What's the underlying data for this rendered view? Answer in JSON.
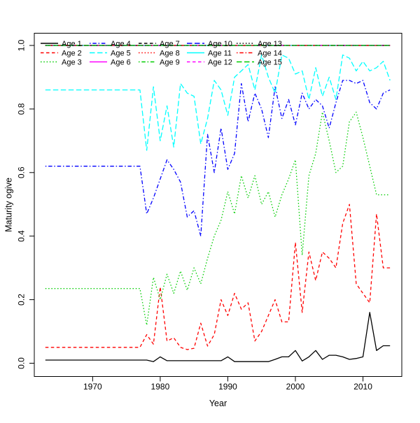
{
  "window": {
    "background": "#FFFFFF",
    "border_color": "#000000"
  },
  "chart_data": {
    "type": "line",
    "title": "",
    "xlabel": "Year",
    "ylabel": "Maturity ogive",
    "grid": false,
    "legend": {
      "position": "top-left",
      "columns": 5,
      "rows": 3,
      "fill_order": "column-major",
      "border": "none"
    },
    "xlim": [
      1961,
      2016
    ],
    "ylim": [
      -0.04,
      1.04
    ],
    "x_ticks": [
      1970,
      1980,
      1990,
      2000,
      2010
    ],
    "y_ticks": [
      {
        "value": 0.0,
        "label": "0.0"
      },
      {
        "value": 0.2,
        "label": "0.2"
      },
      {
        "value": 0.4,
        "label": "0.4"
      },
      {
        "value": 0.6,
        "label": "0.6"
      },
      {
        "value": 0.8,
        "label": "0.8"
      },
      {
        "value": 1.0,
        "label": "1.0"
      }
    ],
    "years": [
      1963,
      1964,
      1965,
      1966,
      1967,
      1968,
      1969,
      1970,
      1971,
      1972,
      1973,
      1974,
      1975,
      1976,
      1977,
      1978,
      1979,
      1980,
      1981,
      1982,
      1983,
      1984,
      1985,
      1986,
      1987,
      1988,
      1989,
      1990,
      1991,
      1992,
      1993,
      1994,
      1995,
      1996,
      1997,
      1998,
      1999,
      2000,
      2001,
      2002,
      2003,
      2004,
      2005,
      2006,
      2007,
      2008,
      2009,
      2010,
      2011,
      2012,
      2013,
      2014
    ],
    "series": [
      {
        "name": "Age 1",
        "color": "#000000",
        "linetype": "solid",
        "values": [
          0.01,
          0.01,
          0.01,
          0.01,
          0.01,
          0.01,
          0.01,
          0.01,
          0.01,
          0.01,
          0.01,
          0.01,
          0.01,
          0.01,
          0.01,
          0.01,
          0.005,
          0.02,
          0.008,
          0.008,
          0.008,
          0.008,
          0.008,
          0.008,
          0.008,
          0.008,
          0.008,
          0.02,
          0.005,
          0.005,
          0.005,
          0.005,
          0.005,
          0.005,
          0.012,
          0.02,
          0.02,
          0.04,
          0.007,
          0.02,
          0.04,
          0.012,
          0.025,
          0.025,
          0.02,
          0.012,
          0.015,
          0.02,
          0.16,
          0.04,
          0.055,
          0.055
        ]
      },
      {
        "name": "Age 2",
        "color": "#FF0000",
        "linetype": "dashed",
        "values": [
          0.05,
          0.05,
          0.05,
          0.05,
          0.05,
          0.05,
          0.05,
          0.05,
          0.05,
          0.05,
          0.05,
          0.05,
          0.05,
          0.05,
          0.05,
          0.09,
          0.06,
          0.24,
          0.07,
          0.08,
          0.05,
          0.043,
          0.047,
          0.126,
          0.054,
          0.09,
          0.2,
          0.15,
          0.22,
          0.17,
          0.19,
          0.07,
          0.1,
          0.15,
          0.2,
          0.13,
          0.13,
          0.38,
          0.16,
          0.35,
          0.26,
          0.35,
          0.33,
          0.3,
          0.44,
          0.5,
          0.25,
          0.22,
          0.19,
          0.47,
          0.3,
          0.3
        ]
      },
      {
        "name": "Age 3",
        "color": "#00CD00",
        "linetype": "dotted",
        "values": [
          0.235,
          0.235,
          0.235,
          0.235,
          0.235,
          0.235,
          0.235,
          0.235,
          0.235,
          0.235,
          0.235,
          0.235,
          0.235,
          0.235,
          0.235,
          0.12,
          0.27,
          0.2,
          0.28,
          0.22,
          0.29,
          0.23,
          0.3,
          0.25,
          0.33,
          0.4,
          0.45,
          0.54,
          0.47,
          0.59,
          0.52,
          0.59,
          0.5,
          0.54,
          0.46,
          0.53,
          0.58,
          0.64,
          0.34,
          0.59,
          0.66,
          0.79,
          0.7,
          0.6,
          0.62,
          0.76,
          0.79,
          0.71,
          0.62,
          0.53,
          0.53,
          0.53
        ]
      },
      {
        "name": "Age 4",
        "color": "#0000FF",
        "linetype": "dotdash",
        "values": [
          0.62,
          0.62,
          0.62,
          0.62,
          0.62,
          0.62,
          0.62,
          0.62,
          0.62,
          0.62,
          0.62,
          0.62,
          0.62,
          0.62,
          0.62,
          0.47,
          0.52,
          0.58,
          0.64,
          0.61,
          0.57,
          0.46,
          0.48,
          0.4,
          0.72,
          0.6,
          0.74,
          0.61,
          0.66,
          0.88,
          0.76,
          0.85,
          0.8,
          0.71,
          0.87,
          0.77,
          0.83,
          0.75,
          0.85,
          0.8,
          0.83,
          0.81,
          0.74,
          0.82,
          0.89,
          0.89,
          0.88,
          0.89,
          0.82,
          0.8,
          0.85,
          0.86
        ]
      },
      {
        "name": "Age 5",
        "color": "#00FFFF",
        "linetype": "longdash",
        "values": [
          0.86,
          0.86,
          0.86,
          0.86,
          0.86,
          0.86,
          0.86,
          0.86,
          0.86,
          0.86,
          0.86,
          0.86,
          0.86,
          0.86,
          0.86,
          0.67,
          0.87,
          0.7,
          0.81,
          0.68,
          0.88,
          0.85,
          0.84,
          0.69,
          0.77,
          0.89,
          0.86,
          0.78,
          0.9,
          0.92,
          0.94,
          0.86,
          0.97,
          0.9,
          0.85,
          0.97,
          0.96,
          0.91,
          0.92,
          0.83,
          0.93,
          0.84,
          0.9,
          0.83,
          0.97,
          0.96,
          0.92,
          0.95,
          0.92,
          0.93,
          0.95,
          0.89
        ]
      },
      {
        "name": "Age 6",
        "color": "#FF00FF",
        "linetype": "solid",
        "values": [
          1,
          1,
          1,
          1,
          1,
          1,
          1,
          1,
          1,
          1,
          1,
          1,
          1,
          1,
          1,
          1,
          1,
          1,
          1,
          1,
          1,
          1,
          1,
          1,
          1,
          1,
          1,
          1,
          1,
          1,
          1,
          1,
          1,
          1,
          1,
          1,
          1,
          1,
          1,
          1,
          1,
          1,
          1,
          1,
          1,
          1,
          1,
          1,
          1,
          1,
          1,
          1
        ]
      },
      {
        "name": "Age 7",
        "color": "#000000",
        "linetype": "dashed",
        "values": [
          1,
          1,
          1,
          1,
          1,
          1,
          1,
          1,
          1,
          1,
          1,
          1,
          1,
          1,
          1,
          1,
          1,
          1,
          1,
          1,
          1,
          1,
          1,
          1,
          1,
          1,
          1,
          1,
          1,
          1,
          1,
          1,
          1,
          1,
          1,
          1,
          1,
          1,
          1,
          1,
          1,
          1,
          1,
          1,
          1,
          1,
          1,
          1,
          1,
          1,
          1,
          1
        ]
      },
      {
        "name": "Age 8",
        "color": "#FF0000",
        "linetype": "dotted",
        "values": [
          1,
          1,
          1,
          1,
          1,
          1,
          1,
          1,
          1,
          1,
          1,
          1,
          1,
          1,
          1,
          1,
          1,
          1,
          1,
          1,
          1,
          1,
          1,
          1,
          1,
          1,
          1,
          1,
          1,
          1,
          1,
          1,
          1,
          1,
          1,
          1,
          1,
          1,
          1,
          1,
          1,
          1,
          1,
          1,
          1,
          1,
          1,
          1,
          1,
          1,
          1,
          1
        ]
      },
      {
        "name": "Age 9",
        "color": "#00CD00",
        "linetype": "dotdash",
        "values": [
          1,
          1,
          1,
          1,
          1,
          1,
          1,
          1,
          1,
          1,
          1,
          1,
          1,
          1,
          1,
          1,
          1,
          1,
          1,
          1,
          1,
          1,
          1,
          1,
          1,
          1,
          1,
          1,
          1,
          1,
          1,
          1,
          1,
          1,
          1,
          1,
          1,
          1,
          1,
          1,
          1,
          1,
          1,
          1,
          1,
          1,
          1,
          1,
          1,
          1,
          1,
          1
        ]
      },
      {
        "name": "Age 10",
        "color": "#0000FF",
        "linetype": "longdash",
        "values": [
          1,
          1,
          1,
          1,
          1,
          1,
          1,
          1,
          1,
          1,
          1,
          1,
          1,
          1,
          1,
          1,
          1,
          1,
          1,
          1,
          1,
          1,
          1,
          1,
          1,
          1,
          1,
          1,
          1,
          1,
          1,
          1,
          1,
          1,
          1,
          1,
          1,
          1,
          1,
          1,
          1,
          1,
          1,
          1,
          1,
          1,
          1,
          1,
          1,
          1,
          1,
          1
        ]
      },
      {
        "name": "Age 11",
        "color": "#00FFFF",
        "linetype": "solid",
        "values": [
          1,
          1,
          1,
          1,
          1,
          1,
          1,
          1,
          1,
          1,
          1,
          1,
          1,
          1,
          1,
          1,
          1,
          1,
          1,
          1,
          1,
          1,
          1,
          1,
          1,
          1,
          1,
          1,
          1,
          1,
          1,
          1,
          1,
          1,
          1,
          1,
          1,
          1,
          1,
          1,
          1,
          1,
          1,
          1,
          1,
          1,
          1,
          1,
          1,
          1,
          1,
          1
        ]
      },
      {
        "name": "Age 12",
        "color": "#FF00FF",
        "linetype": "dashed",
        "values": [
          1,
          1,
          1,
          1,
          1,
          1,
          1,
          1,
          1,
          1,
          1,
          1,
          1,
          1,
          1,
          1,
          1,
          1,
          1,
          1,
          1,
          1,
          1,
          1,
          1,
          1,
          1,
          1,
          1,
          1,
          1,
          1,
          1,
          1,
          1,
          1,
          1,
          1,
          1,
          1,
          1,
          1,
          1,
          1,
          1,
          1,
          1,
          1,
          1,
          1,
          1,
          1
        ]
      },
      {
        "name": "Age 13",
        "color": "#000000",
        "linetype": "dotted",
        "values": [
          1,
          1,
          1,
          1,
          1,
          1,
          1,
          1,
          1,
          1,
          1,
          1,
          1,
          1,
          1,
          1,
          1,
          1,
          1,
          1,
          1,
          1,
          1,
          1,
          1,
          1,
          1,
          1,
          1,
          1,
          1,
          1,
          1,
          1,
          1,
          1,
          1,
          1,
          1,
          1,
          1,
          1,
          1,
          1,
          1,
          1,
          1,
          1,
          1,
          1,
          1,
          1
        ]
      },
      {
        "name": "Age 14",
        "color": "#FF0000",
        "linetype": "dotdash",
        "values": [
          1,
          1,
          1,
          1,
          1,
          1,
          1,
          1,
          1,
          1,
          1,
          1,
          1,
          1,
          1,
          1,
          1,
          1,
          1,
          1,
          1,
          1,
          1,
          1,
          1,
          1,
          1,
          1,
          1,
          1,
          1,
          1,
          1,
          1,
          1,
          1,
          1,
          1,
          1,
          1,
          1,
          1,
          1,
          1,
          1,
          1,
          1,
          1,
          1,
          1,
          1,
          1
        ]
      },
      {
        "name": "Age 15",
        "color": "#00CD00",
        "linetype": "longdash",
        "values": [
          1,
          1,
          1,
          1,
          1,
          1,
          1,
          1,
          1,
          1,
          1,
          1,
          1,
          1,
          1,
          1,
          1,
          1,
          1,
          1,
          1,
          1,
          1,
          1,
          1,
          1,
          1,
          1,
          1,
          1,
          1,
          1,
          1,
          1,
          1,
          1,
          1,
          1,
          1,
          1,
          1,
          1,
          1,
          1,
          1,
          1,
          1,
          1,
          1,
          1,
          1,
          1
        ]
      }
    ]
  }
}
